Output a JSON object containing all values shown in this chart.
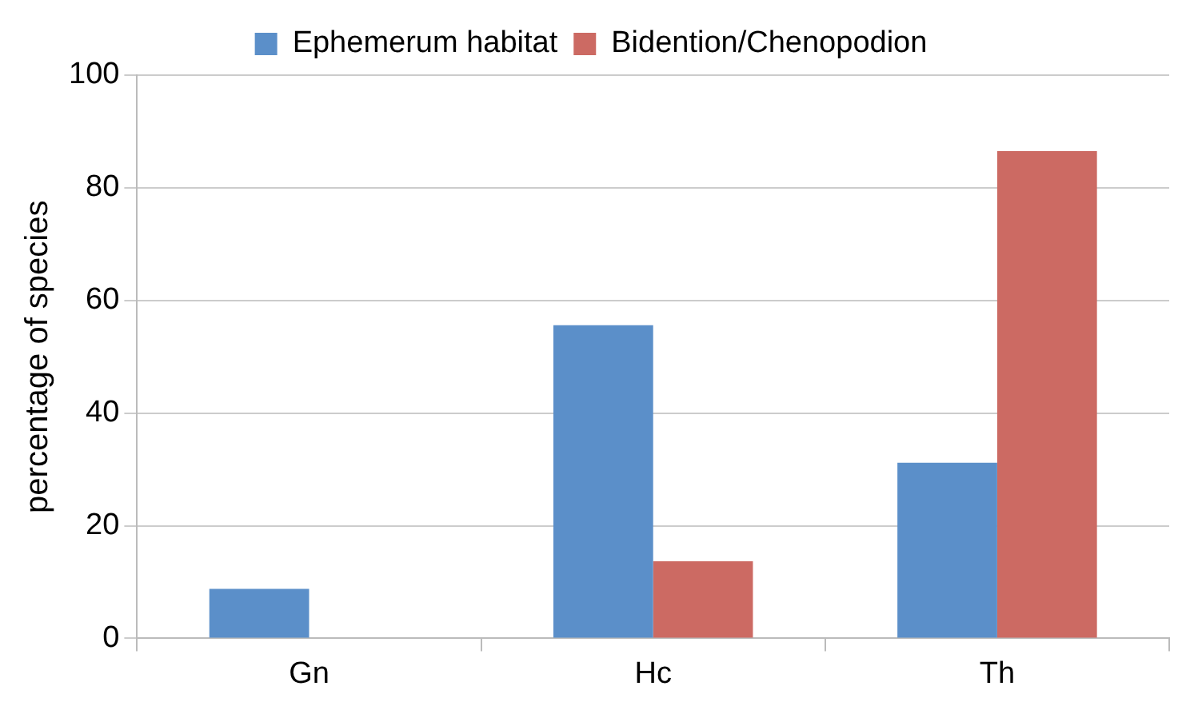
{
  "chart_data": {
    "type": "bar",
    "ylabel": "percentage of species",
    "categories": [
      "Gn",
      "Hc",
      "Th"
    ],
    "series": [
      {
        "name": "Ephemerum habitat",
        "color": "#5b8fc9",
        "values": [
          8.8,
          55.6,
          31.2
        ]
      },
      {
        "name": "Bidention/Chenopodion",
        "color": "#cc6a63",
        "values": [
          0,
          13.7,
          86.5
        ]
      }
    ],
    "ylim": [
      0,
      100
    ],
    "yticks": [
      0,
      20,
      40,
      60,
      80,
      100
    ],
    "grid": "y",
    "legend": "top"
  }
}
